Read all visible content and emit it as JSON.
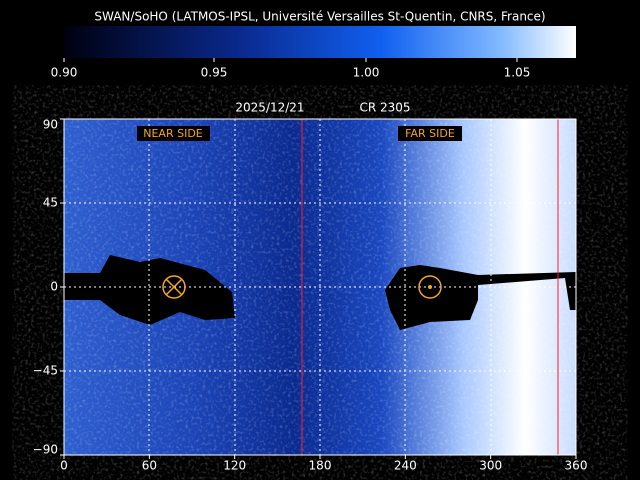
{
  "header": {
    "title": "SWAN/SoHO (LATMOS-IPSL, Université Versailles St-Quentin, CNRS, France)"
  },
  "colorbar": {
    "ticks": [
      "0.90",
      "0.95",
      "1.00",
      "1.05"
    ]
  },
  "map": {
    "date": "2025/12/21",
    "rotation": "CR 2305",
    "x_ticks": [
      "0",
      "60",
      "120",
      "180",
      "240",
      "300",
      "360"
    ],
    "y_ticks": [
      "90",
      "45",
      "0",
      "−45",
      "−90"
    ],
    "labels": {
      "near": "NEAR SIDE",
      "far": "FAR SIDE"
    }
  }
}
